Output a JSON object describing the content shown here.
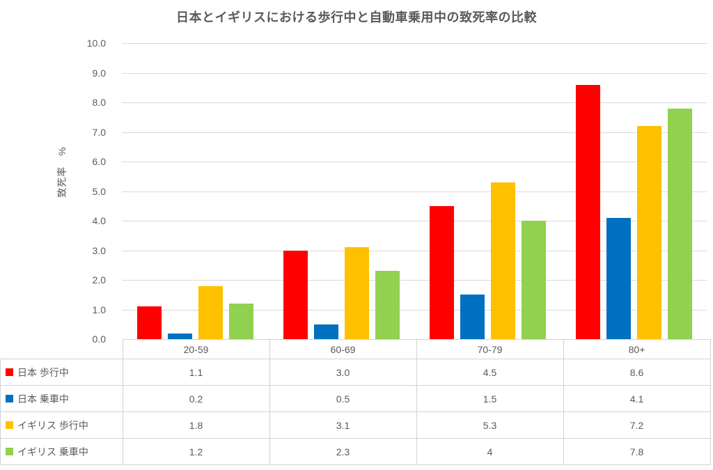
{
  "chart": {
    "title": "日本とイギリスにおける歩行中と自動車乗用中の致死率の比較",
    "y_axis_title": "致死率　%"
  },
  "chart_data": {
    "type": "bar",
    "title": "日本とイギリスにおける歩行中と自動車乗用中の致死率の比較",
    "xlabel": "",
    "ylabel": "致死率 %",
    "categories": [
      "20-59",
      "60-69",
      "70-79",
      "80+"
    ],
    "series": [
      {
        "name": "日本 歩行中",
        "color": "#FF0000",
        "values": [
          1.1,
          3.0,
          4.5,
          8.6
        ],
        "labels": [
          "1.1",
          "3.0",
          "4.5",
          "8.6"
        ]
      },
      {
        "name": "日本 乗車中",
        "color": "#0070C0",
        "values": [
          0.2,
          0.5,
          1.5,
          4.1
        ],
        "labels": [
          "0.2",
          "0.5",
          "1.5",
          "4.1"
        ]
      },
      {
        "name": "イギリス 歩行中",
        "color": "#FFC000",
        "values": [
          1.8,
          3.1,
          5.3,
          7.2
        ],
        "labels": [
          "1.8",
          "3.1",
          "5.3",
          "7.2"
        ]
      },
      {
        "name": "イギリス 乗車中",
        "color": "#92D050",
        "values": [
          1.2,
          2.3,
          4.0,
          7.8
        ],
        "labels": [
          "1.2",
          "2.3",
          "4",
          "7.8"
        ]
      }
    ],
    "ylim": [
      0,
      10
    ],
    "ytick_step": 1.0,
    "ytick_labels": [
      "0.0",
      "1.0",
      "2.0",
      "3.0",
      "4.0",
      "5.0",
      "6.0",
      "7.0",
      "8.0",
      "9.0",
      "10.0"
    ],
    "grid": true,
    "gridline_color": "#D9D9D9",
    "table_border_color": "#D2D2D2",
    "text_color": "#595959",
    "legend_position": "data-table-left-column"
  }
}
